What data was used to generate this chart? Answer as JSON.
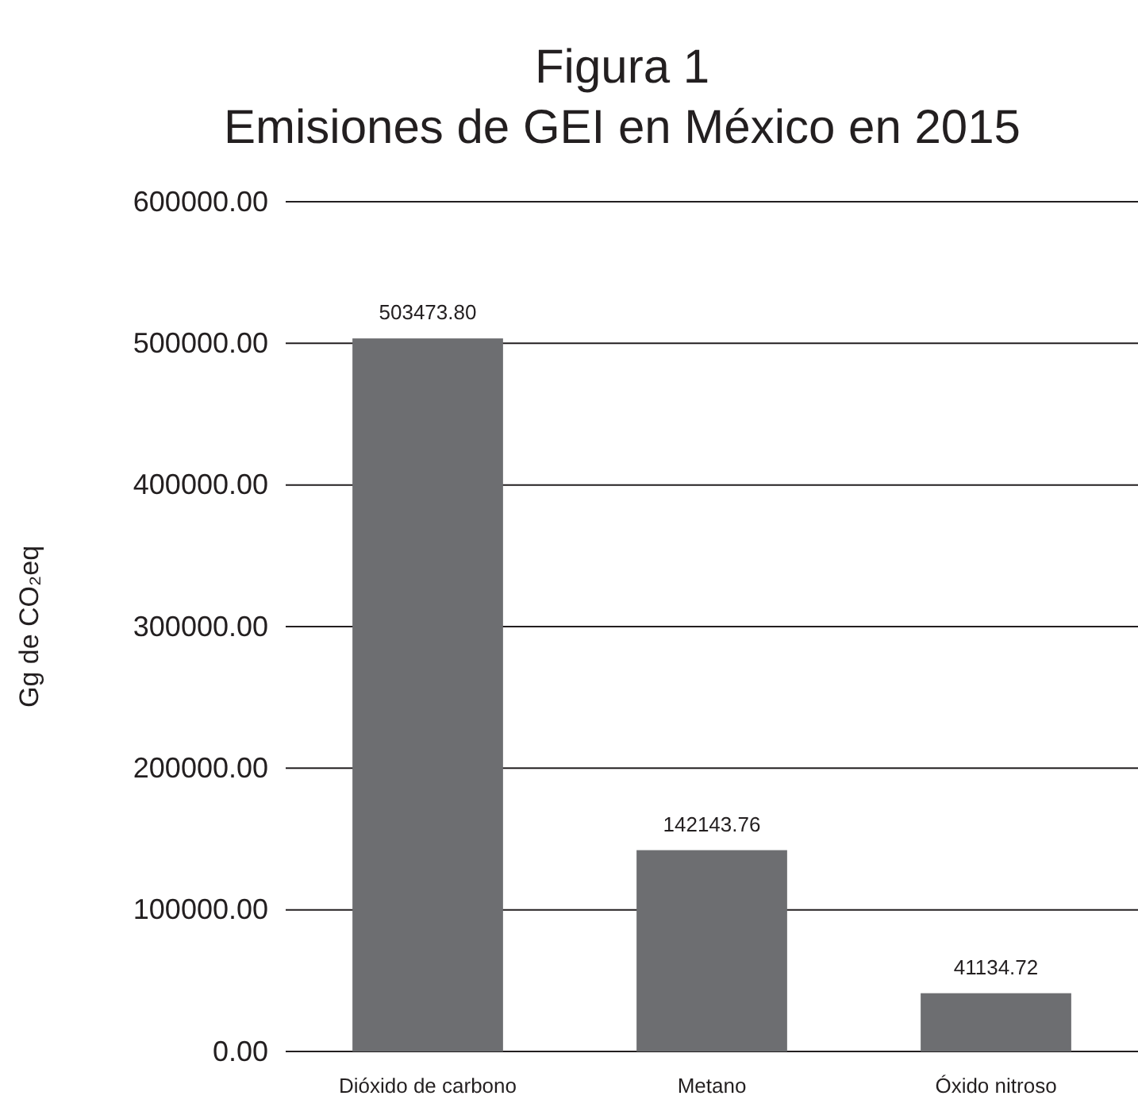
{
  "chart_data": {
    "type": "bar",
    "title": "Figura 1\nEmisiones de GEI en México en 2015",
    "ylabel": "Gg de CO₂eq",
    "categories": [
      "Dióxido de carbono",
      "Metano",
      "Óxido nitroso"
    ],
    "values": [
      503473.8,
      142143.76,
      41134.72
    ],
    "value_labels": [
      "503473.80",
      "142143.76",
      "41134.72"
    ],
    "color": "#6d6e71",
    "ylim": [
      0,
      600000
    ],
    "yticks": [
      {
        "value": 0,
        "label": "0.00"
      },
      {
        "value": 100000,
        "label": "100000.00"
      },
      {
        "value": 200000,
        "label": "200000.00"
      },
      {
        "value": 300000,
        "label": "300000.00"
      },
      {
        "value": 400000,
        "label": "400000.00"
      },
      {
        "value": 500000,
        "label": "500000.00"
      },
      {
        "value": 600000,
        "label": "600000.00"
      }
    ],
    "grid": "y"
  }
}
